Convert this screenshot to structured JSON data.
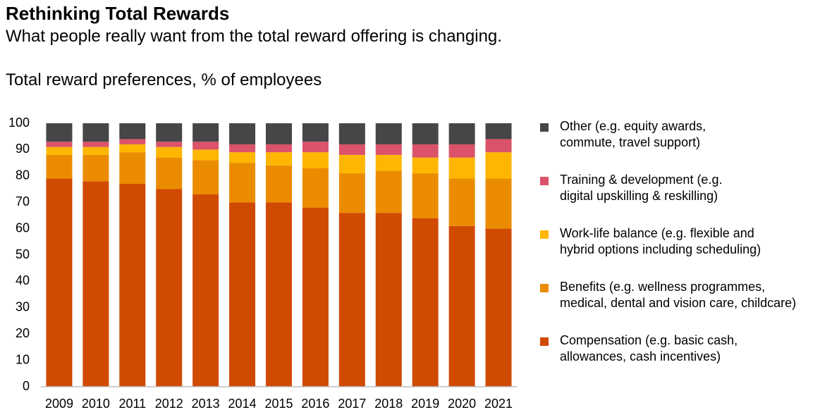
{
  "chart_data": {
    "type": "stacked_bar",
    "title": "Rethinking Total Rewards",
    "subtitle": "What people really want from the total reward offering is changing.",
    "description": "Total reward preferences, % of employees",
    "categories": [
      "2009",
      "2010",
      "2011",
      "2012",
      "2013",
      "2014",
      "2015",
      "2016",
      "2017",
      "2018",
      "2019",
      "2020",
      "2021"
    ],
    "series": [
      {
        "name": "Compensation (e.g. basic cash,\nallowances, cash incentives)",
        "color": "#d04a02",
        "values": [
          79,
          78,
          77,
          75,
          73,
          70,
          70,
          68,
          66,
          66,
          64,
          61,
          60
        ]
      },
      {
        "name": "Benefits (e.g. wellness programmes,\nmedical, dental and vision care, childcare)",
        "color": "#eb8c00",
        "values": [
          9,
          10,
          12,
          12,
          13,
          15,
          14,
          15,
          15,
          16,
          17,
          18,
          19
        ]
      },
      {
        "name": "Work-life balance (e.g. flexible and\nhybrid options including scheduling)",
        "color": "#ffb600",
        "values": [
          3,
          3,
          3,
          4,
          4,
          4,
          5,
          6,
          7,
          6,
          6,
          8,
          10
        ]
      },
      {
        "name": "Training & development (e.g.\ndigital upskilling & reskilling)",
        "color": "#db536a",
        "values": [
          2,
          2,
          2,
          2,
          3,
          3,
          3,
          4,
          4,
          4,
          5,
          5,
          5
        ]
      },
      {
        "name": "Other (e.g. equity awards,\ncommute, travel support)",
        "color": "#464646",
        "values": [
          7,
          7,
          6,
          7,
          7,
          8,
          8,
          7,
          8,
          8,
          8,
          8,
          6
        ]
      }
    ],
    "ylim": [
      0,
      100
    ],
    "yticks": [
      0,
      10,
      20,
      30,
      40,
      50,
      60,
      70,
      80,
      90,
      100
    ],
    "grid": false
  }
}
